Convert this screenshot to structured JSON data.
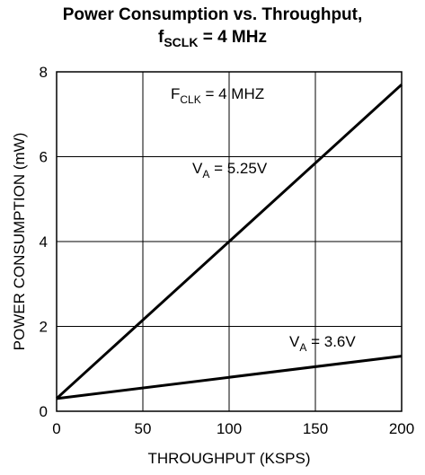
{
  "chart_data": {
    "type": "line",
    "title_line1": "Power Consumption vs. Throughput,",
    "title_line2_main": "f",
    "title_line2_sub": "SCLK",
    "title_line2_rest": " = 4 MHz",
    "xlabel": "THROUGHPUT (KSPS)",
    "ylabel": "POWER CONSUMPTION (mW)",
    "xlim": [
      0,
      200
    ],
    "ylim": [
      0,
      8
    ],
    "xticks": [
      0,
      50,
      100,
      150,
      200
    ],
    "yticks": [
      0,
      2,
      4,
      6,
      8
    ],
    "grid": true,
    "annotations": [
      {
        "main": "F",
        "sub": "CLK",
        "rest": " = 4 MHZ"
      },
      {
        "main": "V",
        "sub": "A",
        "rest": " = 5.25V"
      },
      {
        "main": "V",
        "sub": "A",
        "rest": " = 3.6V"
      }
    ],
    "series": [
      {
        "x": [
          0,
          200
        ],
        "y": [
          0.3,
          7.7
        ]
      },
      {
        "x": [
          0,
          200
        ],
        "y": [
          0.3,
          1.3
        ]
      }
    ],
    "colors": {
      "line": "#000000",
      "grid": "#000000"
    }
  }
}
